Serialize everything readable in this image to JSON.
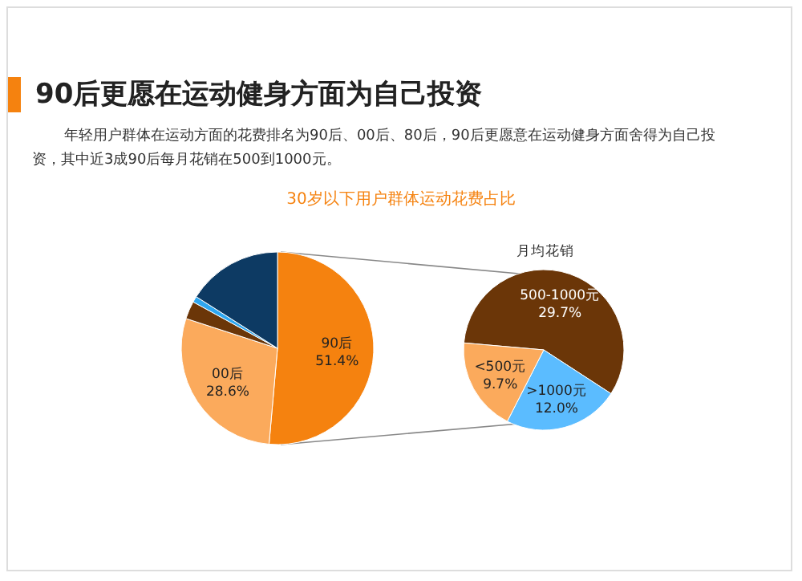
{
  "chart_data": [
    {
      "type": "pie",
      "title": "90后更愿在运动健身方面为自己投资",
      "subtitle": "年轻用户群体在运动方面的花费排名为90后、00后、80后，90后更愿意在运动健身方面舍得为自己投资，其中近3成90后每月花销在500到1000元。",
      "annotations": [
        "30岁以下用户群体运动花费占比"
      ],
      "categories": [
        "90后",
        "00后",
        null,
        null,
        null
      ],
      "values": [
        51.4,
        28.6,
        3,
        1,
        16
      ],
      "colors": [
        "#f5820f",
        "#fbaa5c",
        "#6b3608",
        "#2ea7f0",
        "#0d3a63"
      ],
      "value_labels": [
        "51.4%",
        "28.6%",
        null,
        null,
        null
      ]
    },
    {
      "type": "pie",
      "title": "月均花销",
      "categories": [
        "500-1000元",
        ">1000元",
        "<500元"
      ],
      "values": [
        29.7,
        12.0,
        9.7
      ],
      "colors": [
        "#6b3608",
        "#5bbcff",
        "#fbaa5c"
      ],
      "value_labels": [
        "29.7%",
        "12.0%",
        "9.7%"
      ]
    }
  ]
}
